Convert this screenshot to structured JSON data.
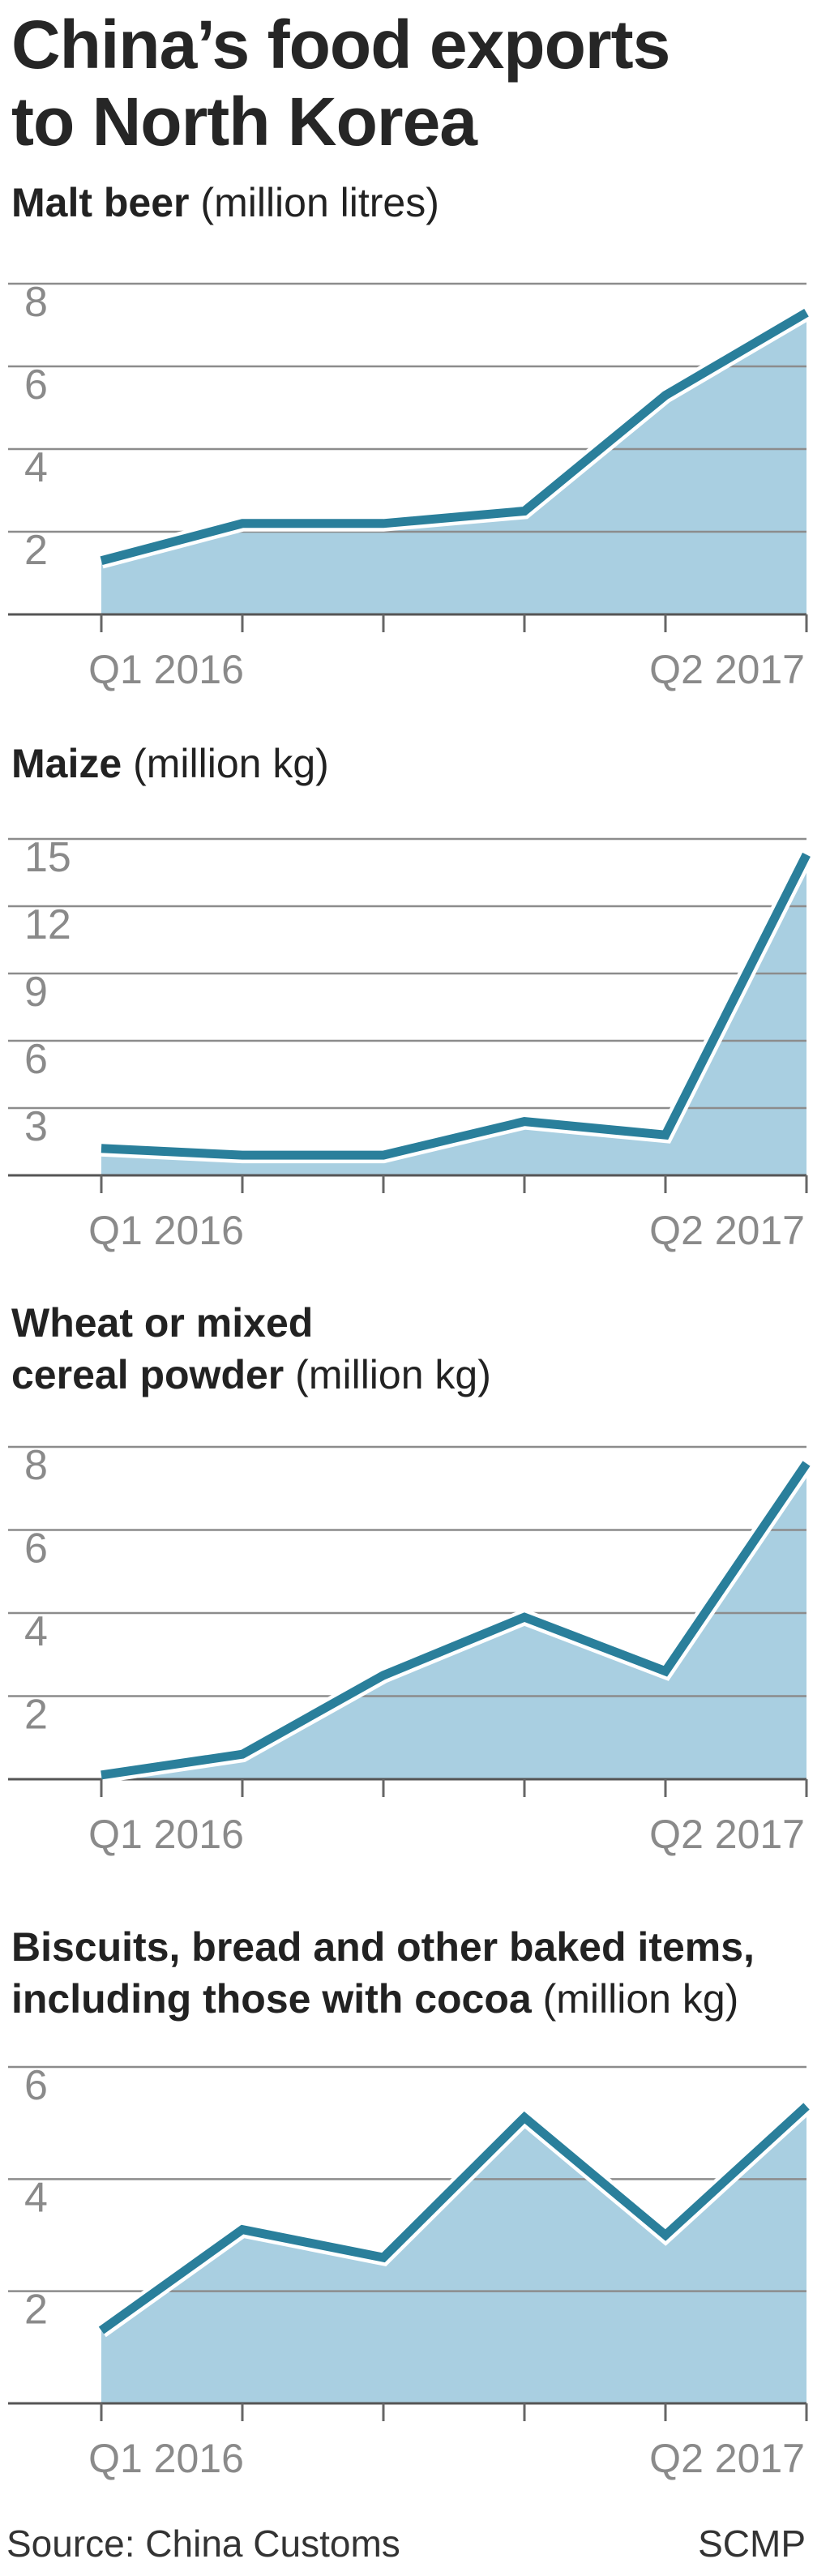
{
  "title_line1": "China’s food exports",
  "title_line2": "to North Korea",
  "colors": {
    "line": "#2a7f9b",
    "fill": "#a9cfe1",
    "grid": "#8c8c8c",
    "tick_text": "#8a8a8a"
  },
  "chart_data": [
    {
      "type": "area",
      "title": "Malt beer",
      "unit": "(million litres)",
      "x": [
        "Q1 2016",
        "Q2 2016",
        "Q3 2016",
        "Q4 2016",
        "Q1 2017",
        "Q2 2017"
      ],
      "x_tick_labels": {
        "first": "Q1 2016",
        "last": "Q2 2017"
      },
      "values": [
        1.3,
        2.2,
        2.2,
        2.5,
        5.3,
        7.3
      ],
      "yticks": [
        2,
        4,
        6,
        8
      ],
      "ylim": [
        0,
        8
      ],
      "grid": true
    },
    {
      "type": "area",
      "title": "Maize",
      "unit": "(million kg)",
      "x": [
        "Q1 2016",
        "Q2 2016",
        "Q3 2016",
        "Q4 2016",
        "Q1 2017",
        "Q2 2017"
      ],
      "x_tick_labels": {
        "first": "Q1 2016",
        "last": "Q2 2017"
      },
      "values": [
        1.2,
        0.9,
        0.9,
        2.4,
        1.8,
        14.3
      ],
      "yticks": [
        3,
        6,
        9,
        12,
        15
      ],
      "ylim": [
        0,
        15
      ],
      "grid": true
    },
    {
      "type": "area",
      "title_lines": [
        "Wheat or mixed",
        "cereal powder"
      ],
      "unit": "(million kg)",
      "x": [
        "Q1 2016",
        "Q2 2016",
        "Q3 2016",
        "Q4 2016",
        "Q1 2017",
        "Q2 2017"
      ],
      "x_tick_labels": {
        "first": "Q1 2016",
        "last": "Q2 2017"
      },
      "values": [
        0.1,
        0.6,
        2.5,
        3.9,
        2.6,
        7.6
      ],
      "yticks": [
        2,
        4,
        6,
        8
      ],
      "ylim": [
        0,
        8
      ],
      "grid": true
    },
    {
      "type": "area",
      "title_lines": [
        "Biscuits, bread and other baked items,",
        "including those with cocoa"
      ],
      "unit": "(million kg)",
      "x": [
        "Q1 2016",
        "Q2 2016",
        "Q3 2016",
        "Q4 2016",
        "Q1 2017",
        "Q2 2017"
      ],
      "x_tick_labels": {
        "first": "Q1 2016",
        "last": "Q2 2017"
      },
      "values": [
        1.3,
        3.1,
        2.6,
        5.1,
        3.0,
        5.3
      ],
      "yticks": [
        2,
        4,
        6
      ],
      "ylim": [
        0,
        6
      ],
      "grid": true
    }
  ],
  "footer": {
    "source": "Source: China Customs",
    "credit": "SCMP"
  }
}
